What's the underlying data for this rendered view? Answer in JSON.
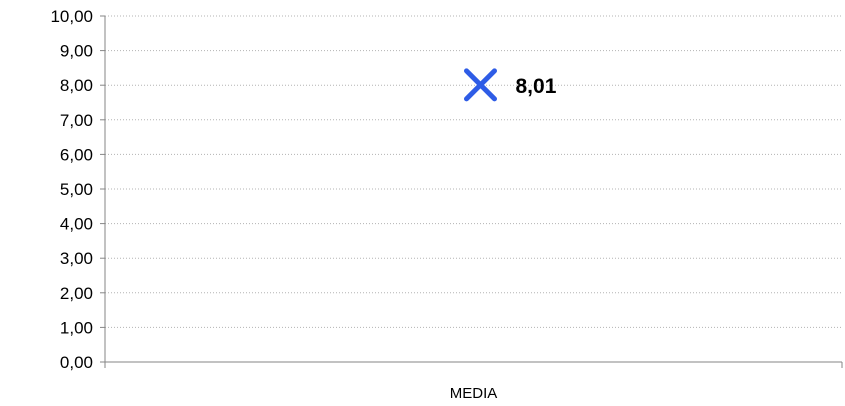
{
  "chart_data": {
    "type": "scatter",
    "categories": [
      "MEDIA"
    ],
    "series": [
      {
        "values": [
          8.01
        ],
        "labels": [
          "8,01"
        ],
        "marker": "x",
        "color": "#2e5ce6"
      }
    ],
    "ylim": [
      0,
      10
    ],
    "y_ticks": [
      "0,00",
      "1,00",
      "2,00",
      "3,00",
      "4,00",
      "5,00",
      "6,00",
      "7,00",
      "8,00",
      "9,00",
      "10,00"
    ],
    "grid": "horizontal-dotted",
    "legend": "none"
  }
}
